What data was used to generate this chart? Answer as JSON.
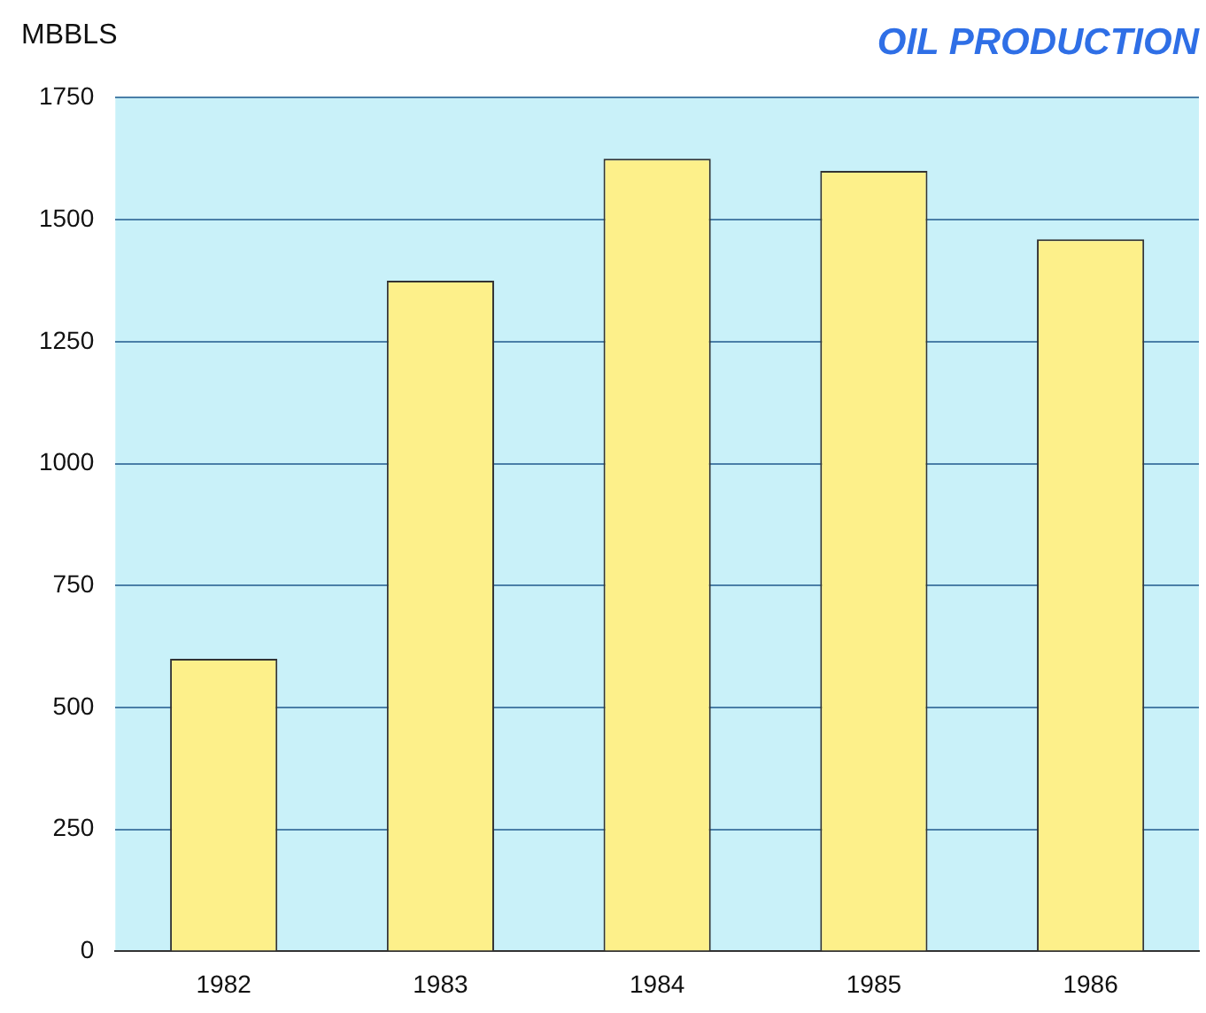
{
  "chart_data": {
    "type": "bar",
    "title": "OIL PRODUCTION",
    "ylabel": "MBBLS",
    "categories": [
      "1982",
      "1983",
      "1984",
      "1985",
      "1986"
    ],
    "values": [
      600,
      1375,
      1625,
      1600,
      1460
    ],
    "color": "#fdf08a",
    "ylim": [
      0,
      1750
    ],
    "yticks": [
      0,
      250,
      500,
      750,
      1000,
      1250,
      1500,
      1750
    ],
    "grid": "y",
    "legend": false
  }
}
